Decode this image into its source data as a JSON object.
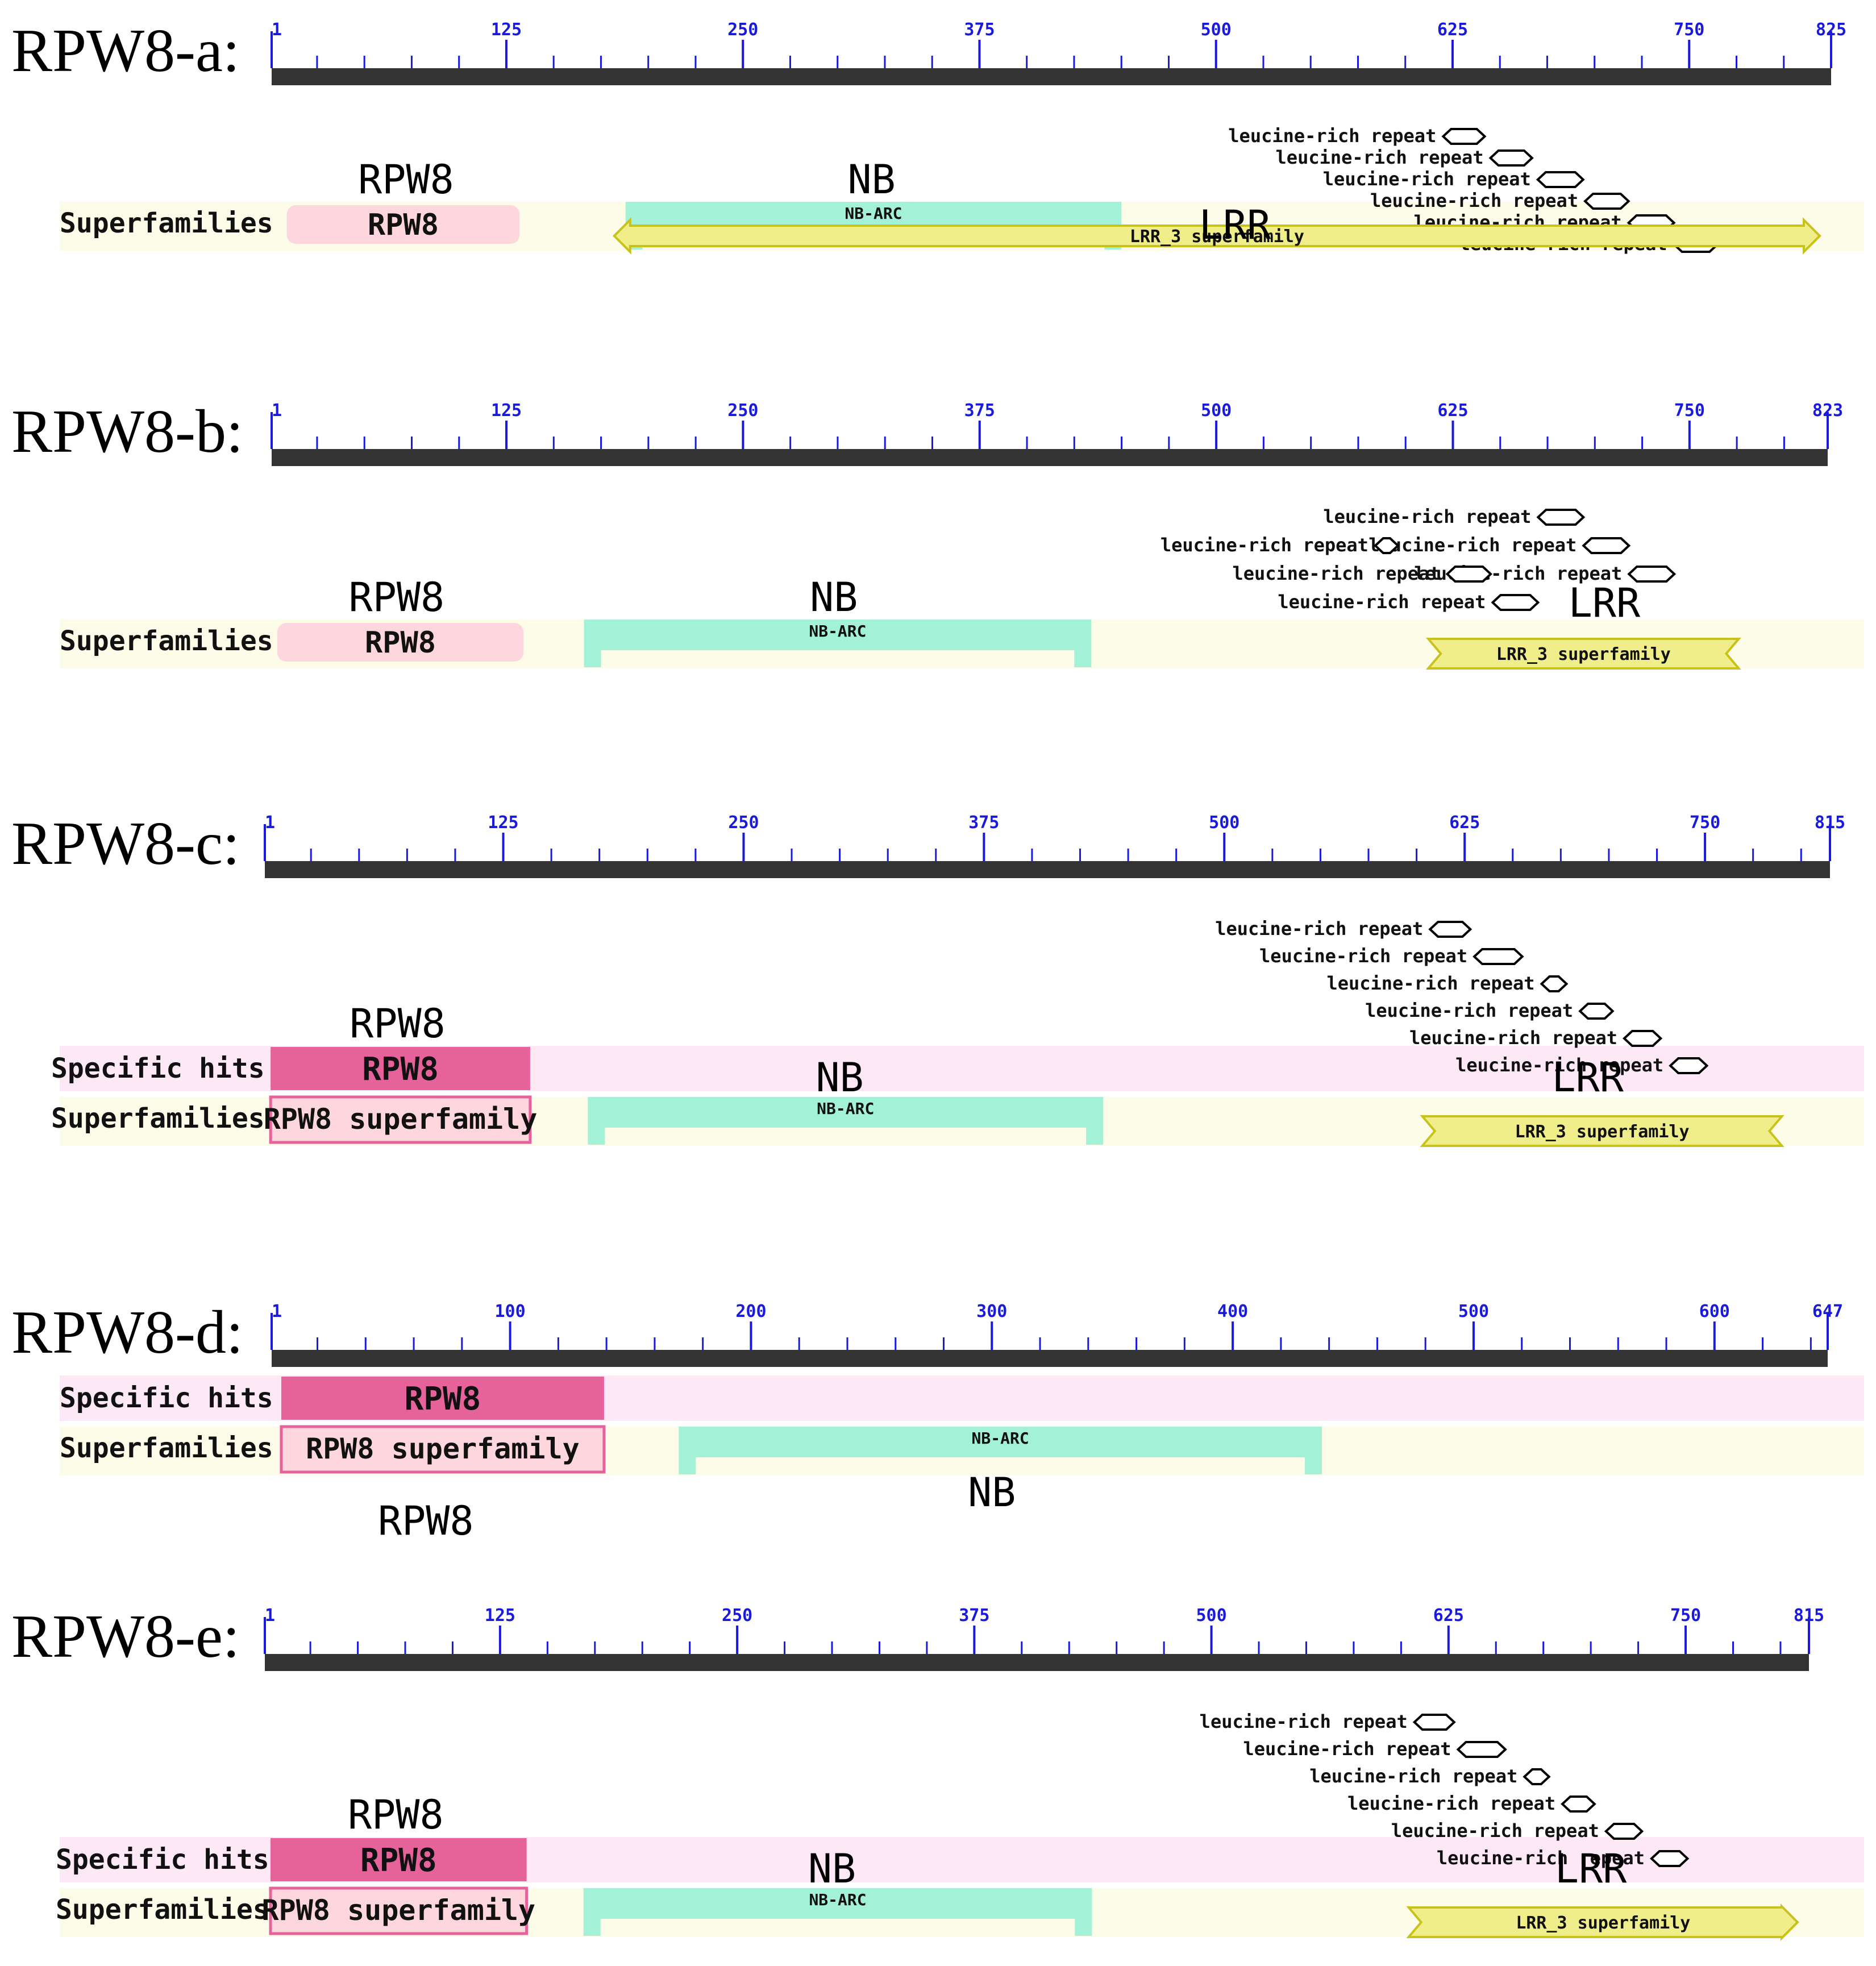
{
  "colors": {
    "axis": "#333333",
    "tick_label": "#1a1adc",
    "superfamily_band": "#fcfce8",
    "specific_band": "#fde8f6",
    "rpw8_superfamily_pink": "#fdd6de",
    "rpw8_specific": "#e6629a",
    "nb_arc": "#a3f1d6",
    "lrr_fill": "#f0ee8a",
    "lrr_stroke": "#c9c21a",
    "repeat_label": "#111111"
  },
  "track_labels": {
    "superfamilies": "Superfamilies",
    "specific_hits": "Specific hits"
  },
  "proteins": [
    {
      "id": "a",
      "name": "RPW8-a:",
      "length": 825,
      "ticks": [
        1,
        125,
        250,
        375,
        500,
        625,
        750,
        825
      ],
      "repeats": [
        {
          "label": "leucine-rich repeat",
          "start": 620,
          "end": 642
        },
        {
          "label": "leucine-rich repeat",
          "start": 645,
          "end": 667
        },
        {
          "label": "leucine-rich repeat",
          "start": 670,
          "end": 694
        },
        {
          "label": "leucine-rich repeat",
          "start": 695,
          "end": 718
        },
        {
          "label": "leucine-rich repeat",
          "start": 718,
          "end": 742
        },
        {
          "label": "leucine-rich repeat",
          "start": 742,
          "end": 765
        }
      ],
      "specific_hits": [],
      "superfamilies": [
        {
          "kind": "rpw8",
          "label": "RPW8",
          "start": 9,
          "end": 132
        },
        {
          "kind": "nbarc",
          "label": "NB-ARC",
          "start": 188,
          "end": 450
        },
        {
          "kind": "lrr",
          "label": "LRR_3 superfamily",
          "start": 182,
          "end": 819,
          "arrow": "both"
        }
      ],
      "annotations": [
        {
          "text": "RPW8",
          "pos": 72,
          "tier": "top"
        },
        {
          "text": "NB",
          "pos": 318,
          "tier": "top"
        },
        {
          "text": "LRR",
          "pos": 510,
          "tier": "mid"
        }
      ]
    },
    {
      "id": "b",
      "name": "RPW8-b:",
      "length": 823,
      "ticks": [
        1,
        125,
        250,
        375,
        500,
        625,
        750,
        823
      ],
      "repeats": [
        {
          "label": "leucine-rich repeat",
          "start": 670,
          "end": 694
        },
        {
          "label": "leucine-rich repeat",
          "start": 694,
          "end": 718
        },
        {
          "label": "leucine-rich repeat",
          "start": 584,
          "end": 596,
          "inline": true
        },
        {
          "label": "leucine-rich repeat",
          "start": 718,
          "end": 742
        },
        {
          "label": "leucine-rich repeat",
          "start": 622,
          "end": 645
        },
        {
          "label": "leucine-rich repeat",
          "start": 646,
          "end": 670
        }
      ],
      "specific_hits": [],
      "superfamilies": [
        {
          "kind": "rpw8",
          "label": "RPW8",
          "start": 4,
          "end": 134
        },
        {
          "kind": "nbarc",
          "label": "NB-ARC",
          "start": 166,
          "end": 434
        },
        {
          "kind": "lrr",
          "label": "LRR_3 superfamily",
          "start": 612,
          "end": 776,
          "arrow": "none"
        }
      ],
      "annotations": [
        {
          "text": "RPW8",
          "pos": 67,
          "tier": "top"
        },
        {
          "text": "NB",
          "pos": 298,
          "tier": "top"
        },
        {
          "text": "LRR",
          "pos": 705,
          "tier": "mid"
        }
      ]
    },
    {
      "id": "c",
      "name": "RPW8-c:",
      "length": 815,
      "ticks": [
        1,
        125,
        250,
        375,
        500,
        625,
        750,
        815
      ],
      "repeats": [
        {
          "label": "leucine-rich repeat",
          "start": 607,
          "end": 628
        },
        {
          "label": "leucine-rich repeat",
          "start": 630,
          "end": 655
        },
        {
          "label": "leucine-rich repeat",
          "start": 665,
          "end": 678
        },
        {
          "label": "leucine-rich repeat",
          "start": 685,
          "end": 702
        },
        {
          "label": "leucine-rich repeat",
          "start": 708,
          "end": 727
        },
        {
          "label": "leucine-rich repeat",
          "start": 732,
          "end": 751
        }
      ],
      "specific_hits": [
        {
          "kind": "rpw8spec",
          "label": "RPW8",
          "start": 4,
          "end": 139
        }
      ],
      "superfamilies": [
        {
          "kind": "rpw8sf",
          "label": "RPW8 superfamily",
          "start": 4,
          "end": 139
        },
        {
          "kind": "nbarc",
          "label": "NB-ARC",
          "start": 169,
          "end": 437
        },
        {
          "kind": "lrr",
          "label": "LRR_3 superfamily",
          "start": 603,
          "end": 790,
          "arrow": "none"
        }
      ],
      "annotations": [
        {
          "text": "RPW8",
          "pos": 70,
          "tier": "top"
        },
        {
          "text": "NB",
          "pos": 300,
          "tier": "mid"
        },
        {
          "text": "LRR",
          "pos": 689,
          "tier": "mid"
        }
      ]
    },
    {
      "id": "d",
      "name": "RPW8-d:",
      "length": 647,
      "ticks": [
        1,
        100,
        200,
        300,
        400,
        500,
        600,
        647
      ],
      "repeats": [],
      "specific_hits": [
        {
          "kind": "rpw8spec",
          "label": "RPW8",
          "start": 5,
          "end": 139
        }
      ],
      "superfamilies": [
        {
          "kind": "rpw8sf",
          "label": "RPW8 superfamily",
          "start": 5,
          "end": 139
        },
        {
          "kind": "nbarc",
          "label": "NB-ARC",
          "start": 170,
          "end": 437
        }
      ],
      "annotations": [
        {
          "text": "RPW8",
          "pos": 65,
          "tier": "below"
        },
        {
          "text": "NB",
          "pos": 300,
          "tier": "below"
        }
      ]
    },
    {
      "id": "e",
      "name": "RPW8-e:",
      "length": 815,
      "ticks": [
        1,
        125,
        250,
        375,
        500,
        625,
        750,
        815
      ],
      "repeats": [
        {
          "label": "leucine-rich repeat",
          "start": 607,
          "end": 628
        },
        {
          "label": "leucine-rich repeat",
          "start": 630,
          "end": 655
        },
        {
          "label": "leucine-rich repeat",
          "start": 665,
          "end": 678
        },
        {
          "label": "leucine-rich repeat",
          "start": 685,
          "end": 702
        },
        {
          "label": "leucine-rich repeat",
          "start": 708,
          "end": 727
        },
        {
          "label": "leucine-rich repeat",
          "start": 732,
          "end": 751
        }
      ],
      "specific_hits": [
        {
          "kind": "rpw8spec",
          "label": "RPW8",
          "start": 4,
          "end": 139
        }
      ],
      "superfamilies": [
        {
          "kind": "rpw8sf",
          "label": "RPW8 superfamily",
          "start": 4,
          "end": 139
        },
        {
          "kind": "nbarc",
          "label": "NB-ARC",
          "start": 169,
          "end": 437
        },
        {
          "kind": "lrr",
          "label": "LRR_3 superfamily",
          "start": 604,
          "end": 809,
          "arrow": "right"
        }
      ],
      "annotations": [
        {
          "text": "RPW8",
          "pos": 70,
          "tier": "top"
        },
        {
          "text": "NB",
          "pos": 300,
          "tier": "mid"
        },
        {
          "text": "LRR",
          "pos": 700,
          "tier": "mid"
        }
      ]
    }
  ]
}
